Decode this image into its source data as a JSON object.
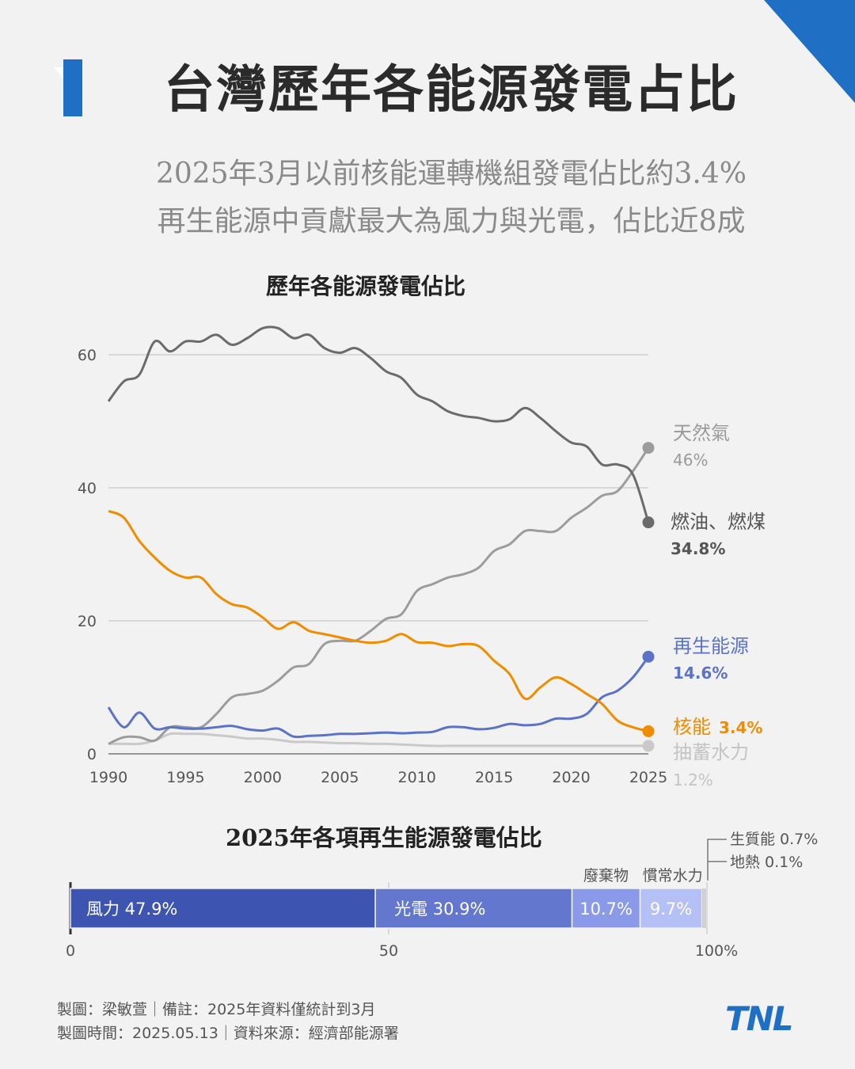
{
  "header": {
    "title": "台灣歷年各能源發電占比",
    "subtitle_line1": "2025年3月以前核能運轉機組發電佔比約3.4%",
    "subtitle_line2": "再生能源中貢獻最大為風力與光電，佔比近8成"
  },
  "chart_data": [
    {
      "type": "line",
      "title": "歷年各能源發電佔比",
      "x": [
        1990,
        1991,
        1992,
        1993,
        1994,
        1995,
        1996,
        1997,
        1998,
        1999,
        2000,
        2001,
        2002,
        2003,
        2004,
        2005,
        2006,
        2007,
        2008,
        2009,
        2010,
        2011,
        2012,
        2013,
        2014,
        2015,
        2016,
        2017,
        2018,
        2019,
        2020,
        2021,
        2022,
        2023,
        2024,
        2025
      ],
      "xticks": [
        1990,
        1995,
        2000,
        2005,
        2010,
        2015,
        2020,
        2025
      ],
      "yticks": [
        0,
        20,
        40,
        60
      ],
      "ylim": [
        0,
        65
      ],
      "grid": true,
      "series": [
        {
          "name": "燃油、燃煤",
          "color": "#6b6b6b",
          "end_label": "34.8%",
          "values": [
            53,
            56,
            57,
            62,
            60.5,
            62,
            62,
            63,
            61.5,
            62.5,
            64,
            64,
            62.5,
            63,
            61,
            60.3,
            61,
            59.5,
            57.5,
            56.5,
            54,
            53,
            51.5,
            50.8,
            50.5,
            50,
            50.3,
            52,
            50.5,
            48.5,
            46.8,
            46.2,
            43.5,
            43.5,
            42,
            34.8
          ]
        },
        {
          "name": "天然氣",
          "color": "#9c9c9c",
          "end_label": "46%",
          "values": [
            1.5,
            2.5,
            2.5,
            2,
            4,
            4,
            4,
            6,
            8.5,
            9,
            9.5,
            11,
            13,
            13.5,
            16.5,
            17,
            17,
            18.5,
            20.3,
            21,
            24.5,
            25.5,
            26.5,
            27,
            28,
            30.5,
            31.5,
            33.5,
            33.5,
            33.5,
            35.5,
            37,
            38.8,
            39.5,
            42.5,
            46
          ]
        },
        {
          "name": "再生能源",
          "color": "#5b73c7",
          "end_label": "14.6%",
          "values": [
            7,
            4,
            6.2,
            3.8,
            4,
            3.8,
            3.8,
            4,
            4.2,
            3.7,
            3.5,
            3.8,
            2.6,
            2.7,
            2.8,
            3,
            3,
            3.1,
            3.2,
            3.1,
            3.2,
            3.3,
            4,
            4,
            3.7,
            3.9,
            4.5,
            4.3,
            4.5,
            5.3,
            5.3,
            6,
            8.5,
            9.5,
            11.5,
            14.6
          ]
        },
        {
          "name": "核能",
          "color": "#f08c00",
          "end_label": "3.4%",
          "values": [
            36.5,
            35.5,
            32,
            29.5,
            27.5,
            26.5,
            26.5,
            24,
            22.5,
            22,
            20.5,
            18.8,
            19.8,
            18.5,
            18,
            17.5,
            17,
            16.7,
            17,
            18,
            16.8,
            16.7,
            16.2,
            16.5,
            16.2,
            14,
            12,
            8.3,
            10,
            11.5,
            10.5,
            9,
            7.5,
            5,
            4,
            3.4
          ]
        },
        {
          "name": "抽蓄水力",
          "color": "#c9c9c9",
          "end_label": "1.2%",
          "values": [
            1.5,
            1.5,
            1.5,
            2,
            3,
            3,
            3,
            2.8,
            2.6,
            2.3,
            2.3,
            2.1,
            1.8,
            1.8,
            1.7,
            1.6,
            1.6,
            1.5,
            1.5,
            1.4,
            1.3,
            1.2,
            1.2,
            1.2,
            1.2,
            1.2,
            1.2,
            1.2,
            1.2,
            1.2,
            1.2,
            1.2,
            1.2,
            1.2,
            1.2,
            1.2
          ]
        }
      ]
    },
    {
      "type": "bar",
      "title": "2025年各項再生能源發電佔比",
      "xticks": [
        "0",
        "50",
        "100%"
      ],
      "xlim": [
        0,
        100
      ],
      "segments": [
        {
          "name": "風力",
          "value": 47.9,
          "label": "風力  47.9%",
          "color": "#3d55b0"
        },
        {
          "name": "光電",
          "value": 30.9,
          "label": "光電  30.9%",
          "color": "#6477cf"
        },
        {
          "name": "廢棄物",
          "value": 10.7,
          "label": "10.7%",
          "color": "#8a9ae8"
        },
        {
          "name": "慣常水力",
          "value": 9.7,
          "label": "9.7%",
          "color": "#b4c0f6"
        },
        {
          "name": "生質能",
          "value": 0.7,
          "label": "生質能 0.7%",
          "color": "#d0d0d0"
        },
        {
          "name": "地熱",
          "value": 0.1,
          "label": "地熱 0.1%",
          "color": "#e0e0e0"
        }
      ]
    }
  ],
  "footer": {
    "line1": "製圖：梁敏萱｜備註：2025年資料僅統計到3月",
    "line2": "製圖時間：2025.05.13｜資料來源：經濟部能源署"
  },
  "logo": {
    "text": "TNL"
  }
}
